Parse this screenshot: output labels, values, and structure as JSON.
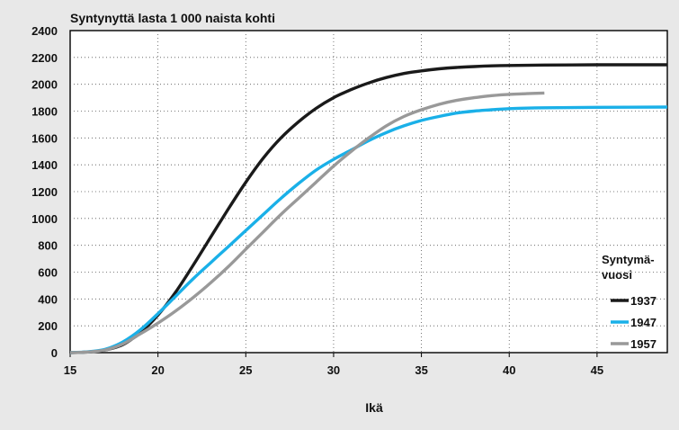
{
  "chart_data": {
    "type": "line",
    "title": "Syntynyttä lasta 1 000 naista kohti",
    "xlabel": "Ikä",
    "ylabel": "",
    "xlim": [
      15,
      49
    ],
    "ylim": [
      0,
      2400
    ],
    "x_ticks": [
      15,
      20,
      25,
      30,
      35,
      40,
      45
    ],
    "y_ticks": [
      0,
      200,
      400,
      600,
      800,
      1000,
      1200,
      1400,
      1600,
      1800,
      2000,
      2200,
      2400
    ],
    "grid": true,
    "legend": {
      "title": "Syntymä-\nvuosi",
      "title_lines": [
        "Syntymä-",
        "vuosi"
      ],
      "placement": "bottom-right"
    },
    "series": [
      {
        "name": "1937",
        "color": "#1a1a1a",
        "points": [
          [
            15,
            0
          ],
          [
            16,
            5
          ],
          [
            17,
            20
          ],
          [
            18,
            60
          ],
          [
            19,
            150
          ],
          [
            20,
            280
          ],
          [
            21,
            450
          ],
          [
            22,
            650
          ],
          [
            23,
            860
          ],
          [
            24,
            1070
          ],
          [
            25,
            1270
          ],
          [
            26,
            1450
          ],
          [
            27,
            1600
          ],
          [
            28,
            1720
          ],
          [
            29,
            1820
          ],
          [
            30,
            1900
          ],
          [
            31,
            1960
          ],
          [
            32,
            2010
          ],
          [
            33,
            2050
          ],
          [
            34,
            2080
          ],
          [
            35,
            2100
          ],
          [
            36,
            2115
          ],
          [
            37,
            2125
          ],
          [
            38,
            2132
          ],
          [
            39,
            2137
          ],
          [
            40,
            2140
          ],
          [
            42,
            2143
          ],
          [
            45,
            2145
          ],
          [
            49,
            2145
          ]
        ]
      },
      {
        "name": "1947",
        "color": "#1ab0e8",
        "points": [
          [
            15,
            0
          ],
          [
            16,
            6
          ],
          [
            17,
            25
          ],
          [
            18,
            80
          ],
          [
            19,
            170
          ],
          [
            20,
            290
          ],
          [
            21,
            420
          ],
          [
            22,
            550
          ],
          [
            23,
            670
          ],
          [
            24,
            790
          ],
          [
            25,
            910
          ],
          [
            26,
            1030
          ],
          [
            27,
            1150
          ],
          [
            28,
            1260
          ],
          [
            29,
            1360
          ],
          [
            30,
            1440
          ],
          [
            31,
            1510
          ],
          [
            32,
            1580
          ],
          [
            33,
            1640
          ],
          [
            34,
            1690
          ],
          [
            35,
            1730
          ],
          [
            36,
            1760
          ],
          [
            37,
            1785
          ],
          [
            38,
            1800
          ],
          [
            39,
            1810
          ],
          [
            40,
            1818
          ],
          [
            42,
            1825
          ],
          [
            45,
            1828
          ],
          [
            49,
            1830
          ]
        ]
      },
      {
        "name": "1957",
        "color": "#999999",
        "points": [
          [
            15,
            0
          ],
          [
            16,
            5
          ],
          [
            17,
            20
          ],
          [
            18,
            65
          ],
          [
            19,
            140
          ],
          [
            20,
            220
          ],
          [
            21,
            310
          ],
          [
            22,
            410
          ],
          [
            23,
            520
          ],
          [
            24,
            640
          ],
          [
            25,
            770
          ],
          [
            26,
            900
          ],
          [
            27,
            1030
          ],
          [
            28,
            1150
          ],
          [
            29,
            1270
          ],
          [
            30,
            1390
          ],
          [
            31,
            1500
          ],
          [
            32,
            1600
          ],
          [
            33,
            1690
          ],
          [
            34,
            1760
          ],
          [
            35,
            1810
          ],
          [
            36,
            1850
          ],
          [
            37,
            1880
          ],
          [
            38,
            1900
          ],
          [
            39,
            1915
          ],
          [
            40,
            1925
          ],
          [
            41,
            1930
          ],
          [
            42,
            1935
          ]
        ]
      }
    ]
  }
}
